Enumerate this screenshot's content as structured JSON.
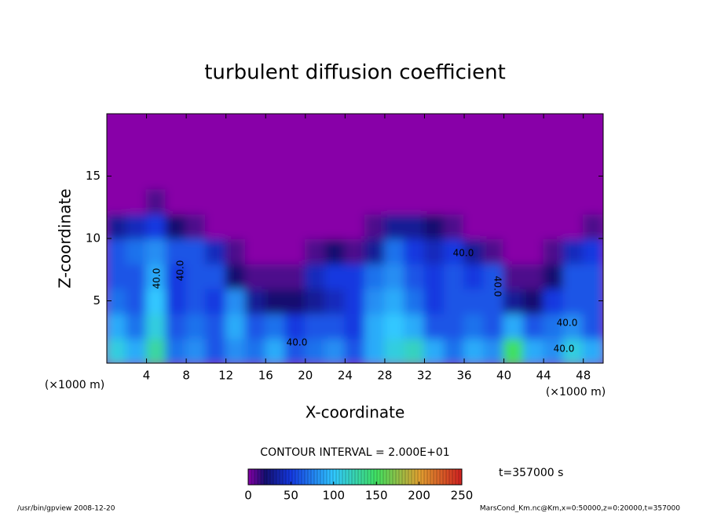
{
  "chart_data": {
    "type": "heatmap",
    "title": "turbulent diffusion coefficient",
    "x_label": "X-coordinate",
    "y_label": "Z-coordinate",
    "x_unit": "(×1000 m)",
    "y_unit": "(×1000 m)",
    "xlim": [
      0,
      50
    ],
    "ylim": [
      0,
      20
    ],
    "xticks": [
      4,
      8,
      12,
      16,
      20,
      24,
      28,
      32,
      36,
      40,
      44,
      48
    ],
    "yticks": [
      5,
      10,
      15
    ],
    "x_edges": [
      0,
      2,
      4,
      6,
      8,
      10,
      12,
      14,
      16,
      18,
      20,
      22,
      24,
      26,
      28,
      30,
      32,
      34,
      36,
      38,
      40,
      42,
      44,
      46,
      48,
      50
    ],
    "y_edges": [
      0,
      2,
      4,
      6,
      8,
      10,
      12,
      14,
      16,
      18,
      20
    ],
    "z": [
      [
        110,
        90,
        130,
        70,
        80,
        60,
        80,
        70,
        90,
        60,
        70,
        80,
        60,
        90,
        110,
        120,
        90,
        70,
        90,
        80,
        150,
        90,
        80,
        110,
        90
      ],
      [
        90,
        70,
        110,
        60,
        70,
        60,
        90,
        60,
        70,
        50,
        60,
        60,
        50,
        90,
        100,
        90,
        60,
        60,
        70,
        60,
        90,
        60,
        70,
        80,
        60
      ],
      [
        70,
        60,
        100,
        50,
        60,
        50,
        80,
        30,
        20,
        20,
        30,
        40,
        50,
        80,
        90,
        70,
        50,
        60,
        60,
        60,
        30,
        20,
        50,
        60,
        60
      ],
      [
        60,
        60,
        90,
        50,
        60,
        60,
        20,
        10,
        10,
        10,
        40,
        50,
        50,
        70,
        80,
        60,
        50,
        60,
        50,
        60,
        10,
        10,
        20,
        60,
        60
      ],
      [
        60,
        70,
        80,
        60,
        60,
        40,
        10,
        0,
        0,
        0,
        10,
        20,
        10,
        30,
        70,
        50,
        40,
        50,
        30,
        10,
        0,
        0,
        10,
        40,
        50
      ],
      [
        30,
        40,
        50,
        20,
        10,
        0,
        0,
        0,
        0,
        0,
        0,
        0,
        0,
        10,
        30,
        30,
        20,
        10,
        0,
        0,
        0,
        0,
        0,
        0,
        10
      ],
      [
        0,
        0,
        10,
        0,
        0,
        0,
        0,
        0,
        0,
        0,
        0,
        0,
        0,
        0,
        0,
        0,
        0,
        0,
        0,
        0,
        0,
        0,
        0,
        0,
        0
      ],
      [
        0,
        0,
        0,
        0,
        0,
        0,
        0,
        0,
        0,
        0,
        0,
        0,
        0,
        0,
        0,
        0,
        0,
        0,
        0,
        0,
        0,
        0,
        0,
        0,
        0
      ],
      [
        0,
        0,
        0,
        0,
        0,
        0,
        0,
        0,
        0,
        0,
        0,
        0,
        0,
        0,
        0,
        0,
        0,
        0,
        0,
        0,
        0,
        0,
        0,
        0,
        0
      ],
      [
        0,
        0,
        0,
        0,
        0,
        0,
        0,
        0,
        0,
        0,
        0,
        0,
        0,
        0,
        0,
        0,
        0,
        0,
        0,
        0,
        0,
        0,
        0,
        0,
        0
      ]
    ],
    "colorscale": [
      [
        0,
        "#8800a8"
      ],
      [
        20,
        "#141070"
      ],
      [
        50,
        "#1438e0"
      ],
      [
        100,
        "#30c8ff"
      ],
      [
        150,
        "#40e060"
      ],
      [
        200,
        "#e0a030"
      ],
      [
        250,
        "#d02020"
      ]
    ],
    "colorbar_lim": [
      0,
      250
    ],
    "colorbar_ticks": [
      0,
      50,
      100,
      150,
      200,
      250
    ],
    "contour_interval_text": "CONTOUR INTERVAL = 2.000E+01",
    "contour_labels": [
      {
        "value": 40,
        "label": "40.0"
      },
      {
        "value": 40,
        "label": "40.0"
      },
      {
        "value": 40,
        "label": "40.0"
      },
      {
        "value": 40,
        "label": "40.0"
      },
      {
        "value": 40,
        "label": "40.0"
      },
      {
        "value": 40,
        "label": "40.0"
      },
      {
        "value": 40,
        "label": "40.0"
      }
    ],
    "time_text": "t=357000 s",
    "footer_left": "/usr/bin/gpview   2008-12-20",
    "footer_right": "MarsCond_Km.nc@Km,x=0:50000,z=0:20000,t=357000"
  }
}
